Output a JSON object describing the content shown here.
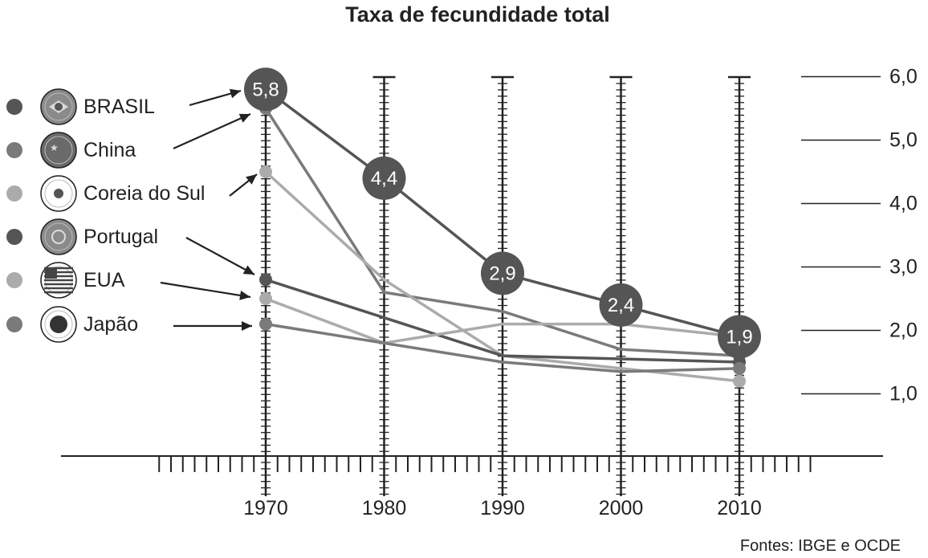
{
  "chart_data": {
    "type": "line",
    "title": "Taxa de fecundidade total",
    "source": "Fontes: IBGE e OCDE",
    "x": [
      1970,
      1980,
      1990,
      2000,
      2010
    ],
    "x_tick_labels": [
      "1970",
      "1980",
      "1990",
      "2000",
      "2010"
    ],
    "y_tick_labels": [
      "6,0",
      "5,0",
      "4,0",
      "3,0",
      "2,0",
      "1,0"
    ],
    "y_ticks": [
      6,
      5,
      4,
      3,
      2,
      1
    ],
    "ylim": [
      0,
      6
    ],
    "legend_position": "left",
    "series": [
      {
        "name": "BRASIL",
        "values": [
          5.8,
          4.4,
          2.9,
          2.4,
          1.9
        ],
        "color": "#555555",
        "data_labels": [
          "5,8",
          "4,4",
          "2,9",
          "2,4",
          "1,9"
        ],
        "icon": "brazil-flag-icon"
      },
      {
        "name": "China",
        "values": [
          5.5,
          2.6,
          2.3,
          1.7,
          1.6
        ],
        "color": "#7a7a7a",
        "icon": "china-flag-icon"
      },
      {
        "name": "Coreia do Sul",
        "values": [
          4.5,
          2.8,
          1.6,
          1.4,
          1.2
        ],
        "color": "#ababab",
        "icon": "south-korea-flag-icon"
      },
      {
        "name": "Portugal",
        "values": [
          2.8,
          2.2,
          1.6,
          1.55,
          1.5
        ],
        "color": "#555555",
        "icon": "portugal-flag-icon"
      },
      {
        "name": "EUA",
        "values": [
          2.5,
          1.8,
          2.1,
          2.1,
          1.9
        ],
        "color": "#ababab",
        "icon": "usa-flag-icon"
      },
      {
        "name": "Japão",
        "values": [
          2.1,
          1.8,
          1.5,
          1.35,
          1.4
        ],
        "color": "#7a7a7a",
        "icon": "japan-flag-icon"
      }
    ]
  }
}
